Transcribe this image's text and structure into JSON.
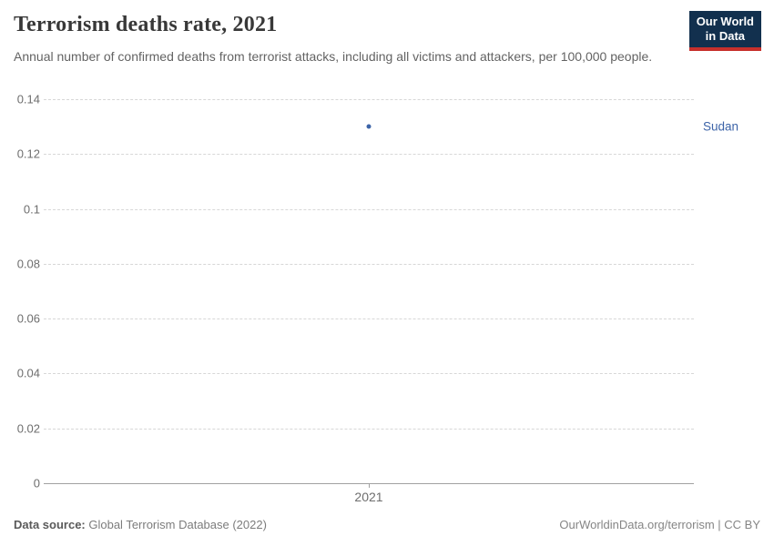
{
  "header": {
    "title": "Terrorism deaths rate, 2021",
    "subtitle": "Annual number of confirmed deaths from terrorist attacks, including all victims and attackers, per 100,000 people.",
    "logo": {
      "line1": "Our World",
      "line2": "in Data",
      "bg_color": "#12304e",
      "accent_color": "#c7302c"
    }
  },
  "chart_data": {
    "type": "scatter",
    "title": "Terrorism deaths rate, 2021",
    "x": [
      2021
    ],
    "xticks": [
      "2021"
    ],
    "series": [
      {
        "name": "Sudan",
        "values": [
          0.13
        ],
        "color": "#3d64a8"
      }
    ],
    "ylim": [
      0,
      0.14
    ],
    "yticks": [
      0,
      0.02,
      0.04,
      0.06,
      0.08,
      0.1,
      0.12,
      0.14
    ],
    "ytick_labels": [
      "0",
      "0.02",
      "0.04",
      "0.06",
      "0.08",
      "0.1",
      "0.12",
      "0.14"
    ],
    "xlabel": "",
    "ylabel": "",
    "grid": "horizontal-dashed",
    "legend_position": "right-of-plot"
  },
  "footer": {
    "source_label": "Data source:",
    "source_text": " Global Terrorism Database (2022)",
    "credit": "OurWorldinData.org/terrorism | CC BY"
  }
}
